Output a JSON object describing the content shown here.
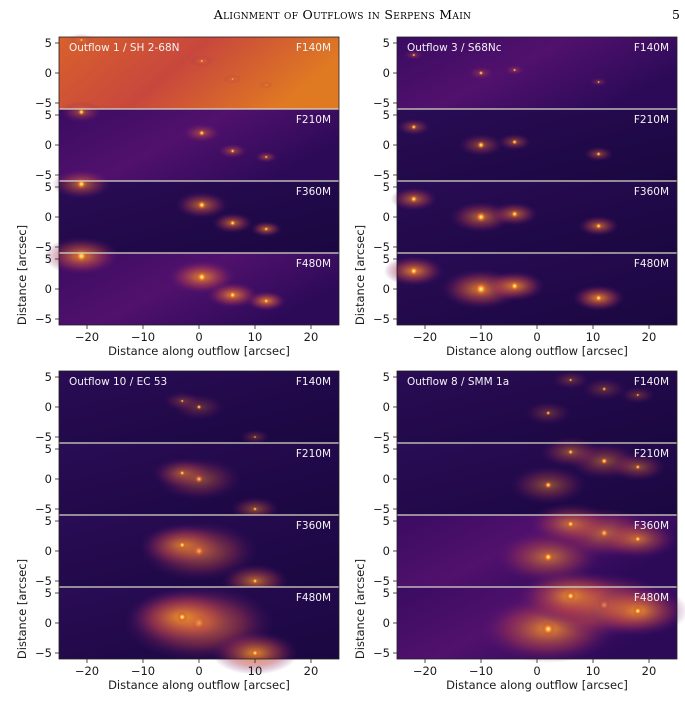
{
  "header": {
    "running_title": "Alignment of Outflows in Serpens Main",
    "page_number": "5"
  },
  "figure": {
    "x_ticks": [
      -20,
      -10,
      0,
      10,
      20
    ],
    "y_ticks": [
      5,
      0,
      -5
    ],
    "y_tick_labels": [
      "5",
      "0",
      "−5"
    ],
    "x_tick_labels": [
      "−20",
      "−10",
      "0",
      "10",
      "20"
    ],
    "xlim": [
      -25,
      25
    ],
    "ylim": [
      -6,
      6
    ],
    "xlabel": "Distance along outflow [arcsec]",
    "ylabel": "Distance [arcsec]",
    "colormap": "inferno",
    "separator_color": "#d9d9c8",
    "groups": [
      {
        "title": "Outflow 1 / SH 2-68N",
        "filters": [
          "F140M",
          "F210M",
          "F360M",
          "F480M"
        ],
        "sources": [
          {
            "x": 0.5,
            "y": 2,
            "s": 1
          },
          {
            "x": 6,
            "y": -1,
            "s": 0.6
          },
          {
            "x": -21,
            "y": 5.5,
            "s": 1.2
          },
          {
            "x": 12,
            "y": -2,
            "s": 0.3
          }
        ]
      },
      {
        "title": "Outflow 3 / S68Nc",
        "filters": [
          "F140M",
          "F210M",
          "F360M",
          "F480M"
        ],
        "sources": [
          {
            "x": -10,
            "y": 0,
            "s": 1.3
          },
          {
            "x": -4,
            "y": 0.5,
            "s": 0.8
          },
          {
            "x": -22,
            "y": 3,
            "s": 0.8
          },
          {
            "x": 11,
            "y": -1.5,
            "s": 0.6
          }
        ]
      },
      {
        "title": "Outflow 10 / EC 53",
        "filters": [
          "F140M",
          "F210M",
          "F360M",
          "F480M"
        ],
        "sources": [
          {
            "x": 0,
            "y": 0,
            "s": 1.4
          },
          {
            "x": 10,
            "y": -5,
            "s": 0.5
          },
          {
            "x": -3,
            "y": 1,
            "s": 0.8
          }
        ]
      },
      {
        "title": "Outflow 8 / SMM 1a",
        "filters": [
          "F140M",
          "F210M",
          "F360M",
          "F480M"
        ],
        "sources": [
          {
            "x": 2,
            "y": -1,
            "s": 1.2
          },
          {
            "x": 12,
            "y": 3,
            "s": 1.1
          },
          {
            "x": 6,
            "y": 4.5,
            "s": 0.8
          },
          {
            "x": 18,
            "y": 2,
            "s": 0.7
          }
        ]
      }
    ]
  }
}
